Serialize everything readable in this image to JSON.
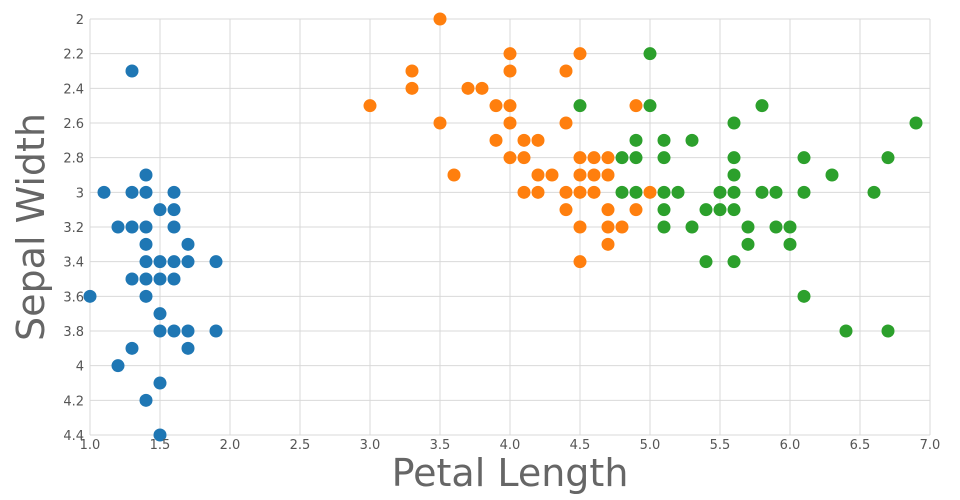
{
  "chart_data": {
    "type": "scatter",
    "title": "",
    "xlabel": "Petal Length",
    "ylabel": "Sepal Width",
    "xlim": [
      1.0,
      7.0
    ],
    "ylim": [
      2.0,
      4.4
    ],
    "y_inverted": true,
    "grid": true,
    "legend": "none",
    "x_ticks": [
      "1.0",
      "1.5",
      "2.0",
      "2.5",
      "3.0",
      "3.5",
      "4.0",
      "4.5",
      "5.0",
      "5.5",
      "6.0",
      "6.5",
      "7.0"
    ],
    "y_ticks": [
      "2",
      "2.2",
      "2.4",
      "2.6",
      "2.8",
      "3",
      "3.2",
      "3.4",
      "3.6",
      "3.8",
      "4",
      "4.2",
      "4.4"
    ],
    "series": [
      {
        "color": "#1f77b4",
        "points": [
          [
            1.3,
            2.3
          ],
          [
            1.0,
            3.6
          ],
          [
            1.1,
            3.0
          ],
          [
            1.3,
            3.0
          ],
          [
            1.4,
            3.0
          ],
          [
            1.4,
            2.9
          ],
          [
            1.6,
            3.0
          ],
          [
            1.5,
            3.1
          ],
          [
            1.6,
            3.1
          ],
          [
            1.2,
            3.2
          ],
          [
            1.3,
            3.2
          ],
          [
            1.4,
            3.2
          ],
          [
            1.6,
            3.2
          ],
          [
            1.4,
            3.3
          ],
          [
            1.7,
            3.3
          ],
          [
            1.4,
            3.4
          ],
          [
            1.5,
            3.4
          ],
          [
            1.6,
            3.4
          ],
          [
            1.7,
            3.4
          ],
          [
            1.9,
            3.4
          ],
          [
            1.3,
            3.5
          ],
          [
            1.4,
            3.5
          ],
          [
            1.5,
            3.5
          ],
          [
            1.6,
            3.5
          ],
          [
            1.4,
            3.6
          ],
          [
            1.5,
            3.7
          ],
          [
            1.5,
            3.8
          ],
          [
            1.6,
            3.8
          ],
          [
            1.7,
            3.8
          ],
          [
            1.9,
            3.8
          ],
          [
            1.3,
            3.9
          ],
          [
            1.7,
            3.9
          ],
          [
            1.2,
            4.0
          ],
          [
            1.5,
            4.1
          ],
          [
            1.4,
            4.2
          ],
          [
            1.5,
            4.4
          ]
        ]
      },
      {
        "color": "#ff7f0e",
        "points": [
          [
            3.5,
            2.0
          ],
          [
            4.0,
            2.2
          ],
          [
            4.5,
            2.2
          ],
          [
            3.3,
            2.3
          ],
          [
            4.0,
            2.3
          ],
          [
            4.4,
            2.3
          ],
          [
            3.3,
            2.4
          ],
          [
            3.7,
            2.4
          ],
          [
            3.8,
            2.4
          ],
          [
            3.0,
            2.5
          ],
          [
            3.9,
            2.5
          ],
          [
            4.0,
            2.5
          ],
          [
            4.9,
            2.5
          ],
          [
            3.5,
            2.6
          ],
          [
            4.0,
            2.6
          ],
          [
            4.4,
            2.6
          ],
          [
            3.9,
            2.7
          ],
          [
            4.1,
            2.7
          ],
          [
            4.2,
            2.7
          ],
          [
            4.0,
            2.8
          ],
          [
            4.1,
            2.8
          ],
          [
            4.5,
            2.8
          ],
          [
            4.6,
            2.8
          ],
          [
            4.7,
            2.8
          ],
          [
            3.6,
            2.9
          ],
          [
            4.2,
            2.9
          ],
          [
            4.3,
            2.9
          ],
          [
            4.5,
            2.9
          ],
          [
            4.6,
            2.9
          ],
          [
            4.7,
            2.9
          ],
          [
            4.1,
            3.0
          ],
          [
            4.2,
            3.0
          ],
          [
            4.4,
            3.0
          ],
          [
            4.5,
            3.0
          ],
          [
            4.6,
            3.0
          ],
          [
            5.0,
            3.0
          ],
          [
            4.4,
            3.1
          ],
          [
            4.7,
            3.1
          ],
          [
            4.9,
            3.1
          ],
          [
            4.5,
            3.2
          ],
          [
            4.7,
            3.2
          ],
          [
            4.8,
            3.2
          ],
          [
            4.7,
            3.3
          ],
          [
            4.5,
            3.4
          ]
        ]
      },
      {
        "color": "#2ca02c",
        "points": [
          [
            5.0,
            2.2
          ],
          [
            4.5,
            2.5
          ],
          [
            5.0,
            2.5
          ],
          [
            5.8,
            2.5
          ],
          [
            6.9,
            2.6
          ],
          [
            5.6,
            2.6
          ],
          [
            4.9,
            2.7
          ],
          [
            5.1,
            2.7
          ],
          [
            5.3,
            2.7
          ],
          [
            4.8,
            2.8
          ],
          [
            4.9,
            2.8
          ],
          [
            5.1,
            2.8
          ],
          [
            5.6,
            2.8
          ],
          [
            6.1,
            2.8
          ],
          [
            6.7,
            2.8
          ],
          [
            5.6,
            2.9
          ],
          [
            6.3,
            2.9
          ],
          [
            4.8,
            3.0
          ],
          [
            4.9,
            3.0
          ],
          [
            5.1,
            3.0
          ],
          [
            5.2,
            3.0
          ],
          [
            5.5,
            3.0
          ],
          [
            5.8,
            3.0
          ],
          [
            5.9,
            3.0
          ],
          [
            6.1,
            3.0
          ],
          [
            6.6,
            3.0
          ],
          [
            5.6,
            3.0
          ],
          [
            5.1,
            3.1
          ],
          [
            5.4,
            3.1
          ],
          [
            5.5,
            3.1
          ],
          [
            5.6,
            3.1
          ],
          [
            5.1,
            3.2
          ],
          [
            5.3,
            3.2
          ],
          [
            5.7,
            3.2
          ],
          [
            5.9,
            3.2
          ],
          [
            6.0,
            3.2
          ],
          [
            5.7,
            3.3
          ],
          [
            6.0,
            3.3
          ],
          [
            5.4,
            3.4
          ],
          [
            5.6,
            3.4
          ],
          [
            6.1,
            3.6
          ],
          [
            6.4,
            3.8
          ],
          [
            6.7,
            3.8
          ]
        ]
      }
    ]
  }
}
